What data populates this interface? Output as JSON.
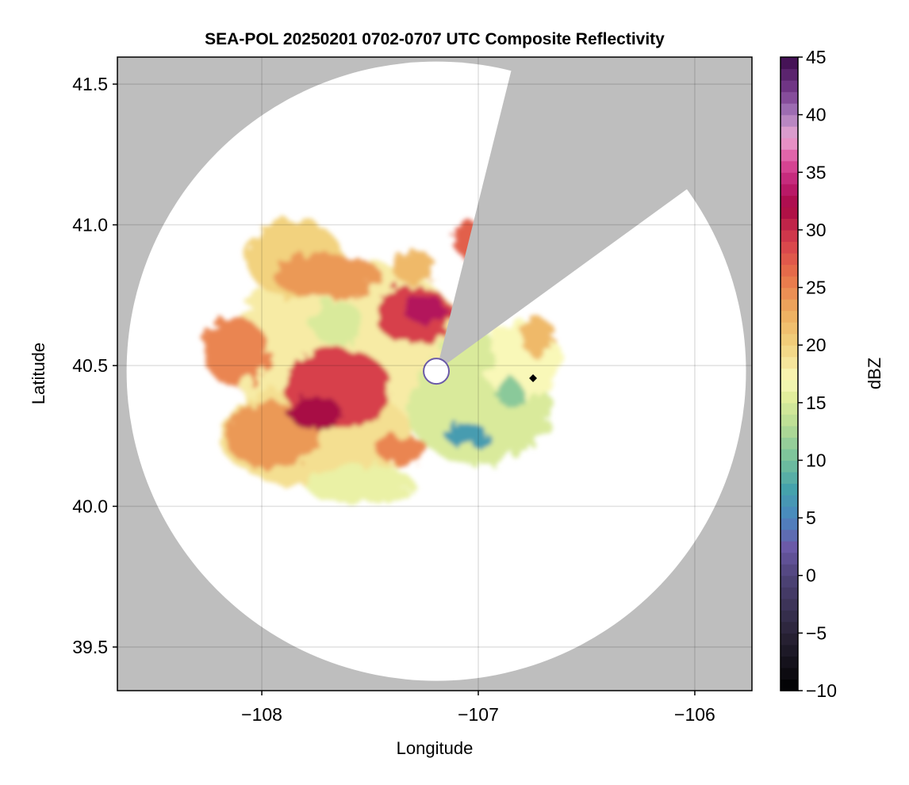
{
  "chart_data": {
    "type": "heatmap",
    "title": "SEA-POL 20250201 0702-0707 UTC Composite Reflectivity",
    "xlabel": "Longitude",
    "ylabel": "Latitude",
    "xlim": [
      -108.667,
      -105.736
    ],
    "ylim": [
      39.345,
      41.596
    ],
    "xticks": [
      -108,
      -107,
      -106
    ],
    "xtick_labels": [
      "−108",
      "−107",
      "−106"
    ],
    "yticks": [
      39.5,
      40.0,
      40.5,
      41.0,
      41.5
    ],
    "ytick_labels": [
      "39.5",
      "40.0",
      "40.5",
      "41.0",
      "41.5"
    ],
    "grid": true,
    "background_color": "#bebebe",
    "radar": {
      "center_lon": -107.194,
      "center_lat": 40.48,
      "range_deg_lat": 1.1,
      "blocked_sector_azimuth_deg": [
        14,
        54
      ],
      "blind_radius_deg_lat": 0.045
    },
    "marker": {
      "lon": -106.747,
      "lat": 40.455,
      "shape": "diamond",
      "color": "#000000"
    },
    "colorbar": {
      "label": "dBZ",
      "range": [
        -10,
        45
      ],
      "bin_width": 1,
      "ticks": [
        -10,
        -5,
        0,
        5,
        10,
        15,
        20,
        25,
        30,
        35,
        40,
        45
      ],
      "tick_labels": [
        "−10",
        "−5",
        "0",
        "5",
        "10",
        "15",
        "20",
        "25",
        "30",
        "35",
        "40",
        "45"
      ],
      "anchors": [
        [
          -10,
          "#000000"
        ],
        [
          -5,
          "#2a2438"
        ],
        [
          0,
          "#4f447a"
        ],
        [
          2.5,
          "#6b5aa8"
        ],
        [
          5,
          "#4a86c0"
        ],
        [
          7.5,
          "#45a2ac"
        ],
        [
          10,
          "#74c09c"
        ],
        [
          13,
          "#b6dc95"
        ],
        [
          15.5,
          "#e2ee9c"
        ],
        [
          17,
          "#f9f8b8"
        ],
        [
          20,
          "#f2d27e"
        ],
        [
          23,
          "#edac5e"
        ],
        [
          26,
          "#e8724a"
        ],
        [
          29,
          "#d7404c"
        ],
        [
          32,
          "#a80845"
        ],
        [
          34,
          "#be1f72"
        ],
        [
          36,
          "#dc4f9c"
        ],
        [
          38,
          "#eaa6d2"
        ],
        [
          40,
          "#a97cbd"
        ],
        [
          42,
          "#7a3d90"
        ],
        [
          45,
          "#3c0a4c"
        ]
      ]
    },
    "echo_regions_note": "approximate reflectivity areas: [lon, lat, half_width_lon, half_height_lat, dBZ]",
    "echo_regions": [
      [
        -107.6,
        40.55,
        0.55,
        0.33,
        18
      ],
      [
        -107.75,
        40.25,
        0.45,
        0.18,
        19
      ],
      [
        -107.0,
        40.35,
        0.33,
        0.2,
        15
      ],
      [
        -106.8,
        40.52,
        0.18,
        0.14,
        17
      ],
      [
        -107.55,
        40.08,
        0.25,
        0.07,
        16
      ],
      [
        -107.85,
        40.88,
        0.22,
        0.14,
        20
      ],
      [
        -108.12,
        40.55,
        0.15,
        0.12,
        25
      ],
      [
        -107.95,
        40.25,
        0.22,
        0.12,
        24
      ],
      [
        -107.65,
        40.42,
        0.25,
        0.14,
        29
      ],
      [
        -107.75,
        40.33,
        0.12,
        0.06,
        32
      ],
      [
        -107.3,
        40.68,
        0.18,
        0.1,
        29
      ],
      [
        -107.25,
        40.7,
        0.1,
        0.05,
        33
      ],
      [
        -107.05,
        40.95,
        0.06,
        0.07,
        27
      ],
      [
        -107.7,
        40.82,
        0.25,
        0.08,
        24
      ],
      [
        -107.3,
        40.85,
        0.1,
        0.06,
        22
      ],
      [
        -107.65,
        40.65,
        0.12,
        0.08,
        15
      ],
      [
        -107.05,
        40.55,
        0.12,
        0.1,
        15
      ],
      [
        -107.05,
        40.25,
        0.1,
        0.04,
        7
      ],
      [
        -106.85,
        40.4,
        0.06,
        0.05,
        11
      ],
      [
        -106.72,
        40.6,
        0.08,
        0.07,
        22
      ],
      [
        -107.35,
        40.2,
        0.12,
        0.05,
        25
      ]
    ]
  }
}
